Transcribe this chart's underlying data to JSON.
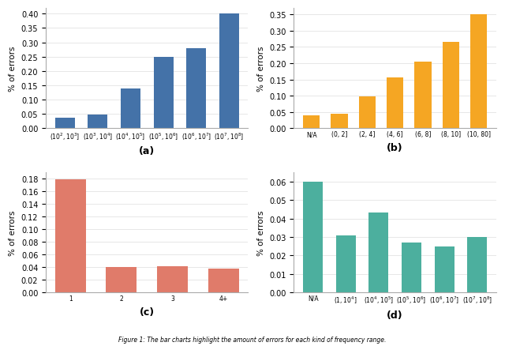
{
  "subplot_a": {
    "categories": [
      "$(10^2, 10^3]$",
      "$(10^3, 10^4]$",
      "$(10^4, 10^5]$",
      "$(10^5, 10^6]$",
      "$(10^6, 10^7]$",
      "$(10^7, 10^8]$"
    ],
    "values": [
      0.037,
      0.048,
      0.14,
      0.25,
      0.28,
      0.4
    ],
    "color": "#4472a8",
    "ylabel": "% of errors",
    "label": "(a)",
    "ylim": [
      0,
      0.42
    ],
    "yticks": [
      0.0,
      0.05,
      0.1,
      0.15,
      0.2,
      0.25,
      0.3,
      0.35,
      0.4
    ]
  },
  "subplot_b": {
    "categories": [
      "N/A",
      "(0, 2]",
      "(2, 4]",
      "(4, 6]",
      "(6, 8]",
      "(8, 10]",
      "(10, 80]"
    ],
    "values": [
      0.04,
      0.044,
      0.099,
      0.157,
      0.205,
      0.265,
      0.35
    ],
    "color": "#f5a623",
    "ylabel": "% of errors",
    "label": "(b)",
    "ylim": [
      0,
      0.37
    ],
    "yticks": [
      0.0,
      0.05,
      0.1,
      0.15,
      0.2,
      0.25,
      0.3,
      0.35
    ]
  },
  "subplot_c": {
    "categories": [
      "1",
      "2",
      "3",
      "4+"
    ],
    "values": [
      0.179,
      0.04,
      0.041,
      0.038
    ],
    "color": "#e07b6a",
    "ylabel": "% of errors",
    "label": "(c)",
    "ylim": [
      0,
      0.19
    ],
    "yticks": [
      0.0,
      0.02,
      0.04,
      0.06,
      0.08,
      0.1,
      0.12,
      0.14,
      0.16,
      0.18
    ]
  },
  "subplot_d": {
    "categories": [
      "N/A",
      "$(1, 10^4]$",
      "$(10^4, 10^5]$",
      "$(10^5, 10^6]$",
      "$(10^6, 10^7]$",
      "$(10^7, 10^8]$"
    ],
    "values": [
      0.06,
      0.031,
      0.043,
      0.027,
      0.025,
      0.03
    ],
    "color": "#4caf9e",
    "ylabel": "% of errors",
    "label": "(d)",
    "ylim": [
      0,
      0.065
    ],
    "yticks": [
      0.0,
      0.01,
      0.02,
      0.03,
      0.04,
      0.05,
      0.06
    ]
  },
  "caption": "Figure 1: The bar charts highlight the amount of errors for each kind of frequency range.",
  "figure_bg": "#ffffff"
}
